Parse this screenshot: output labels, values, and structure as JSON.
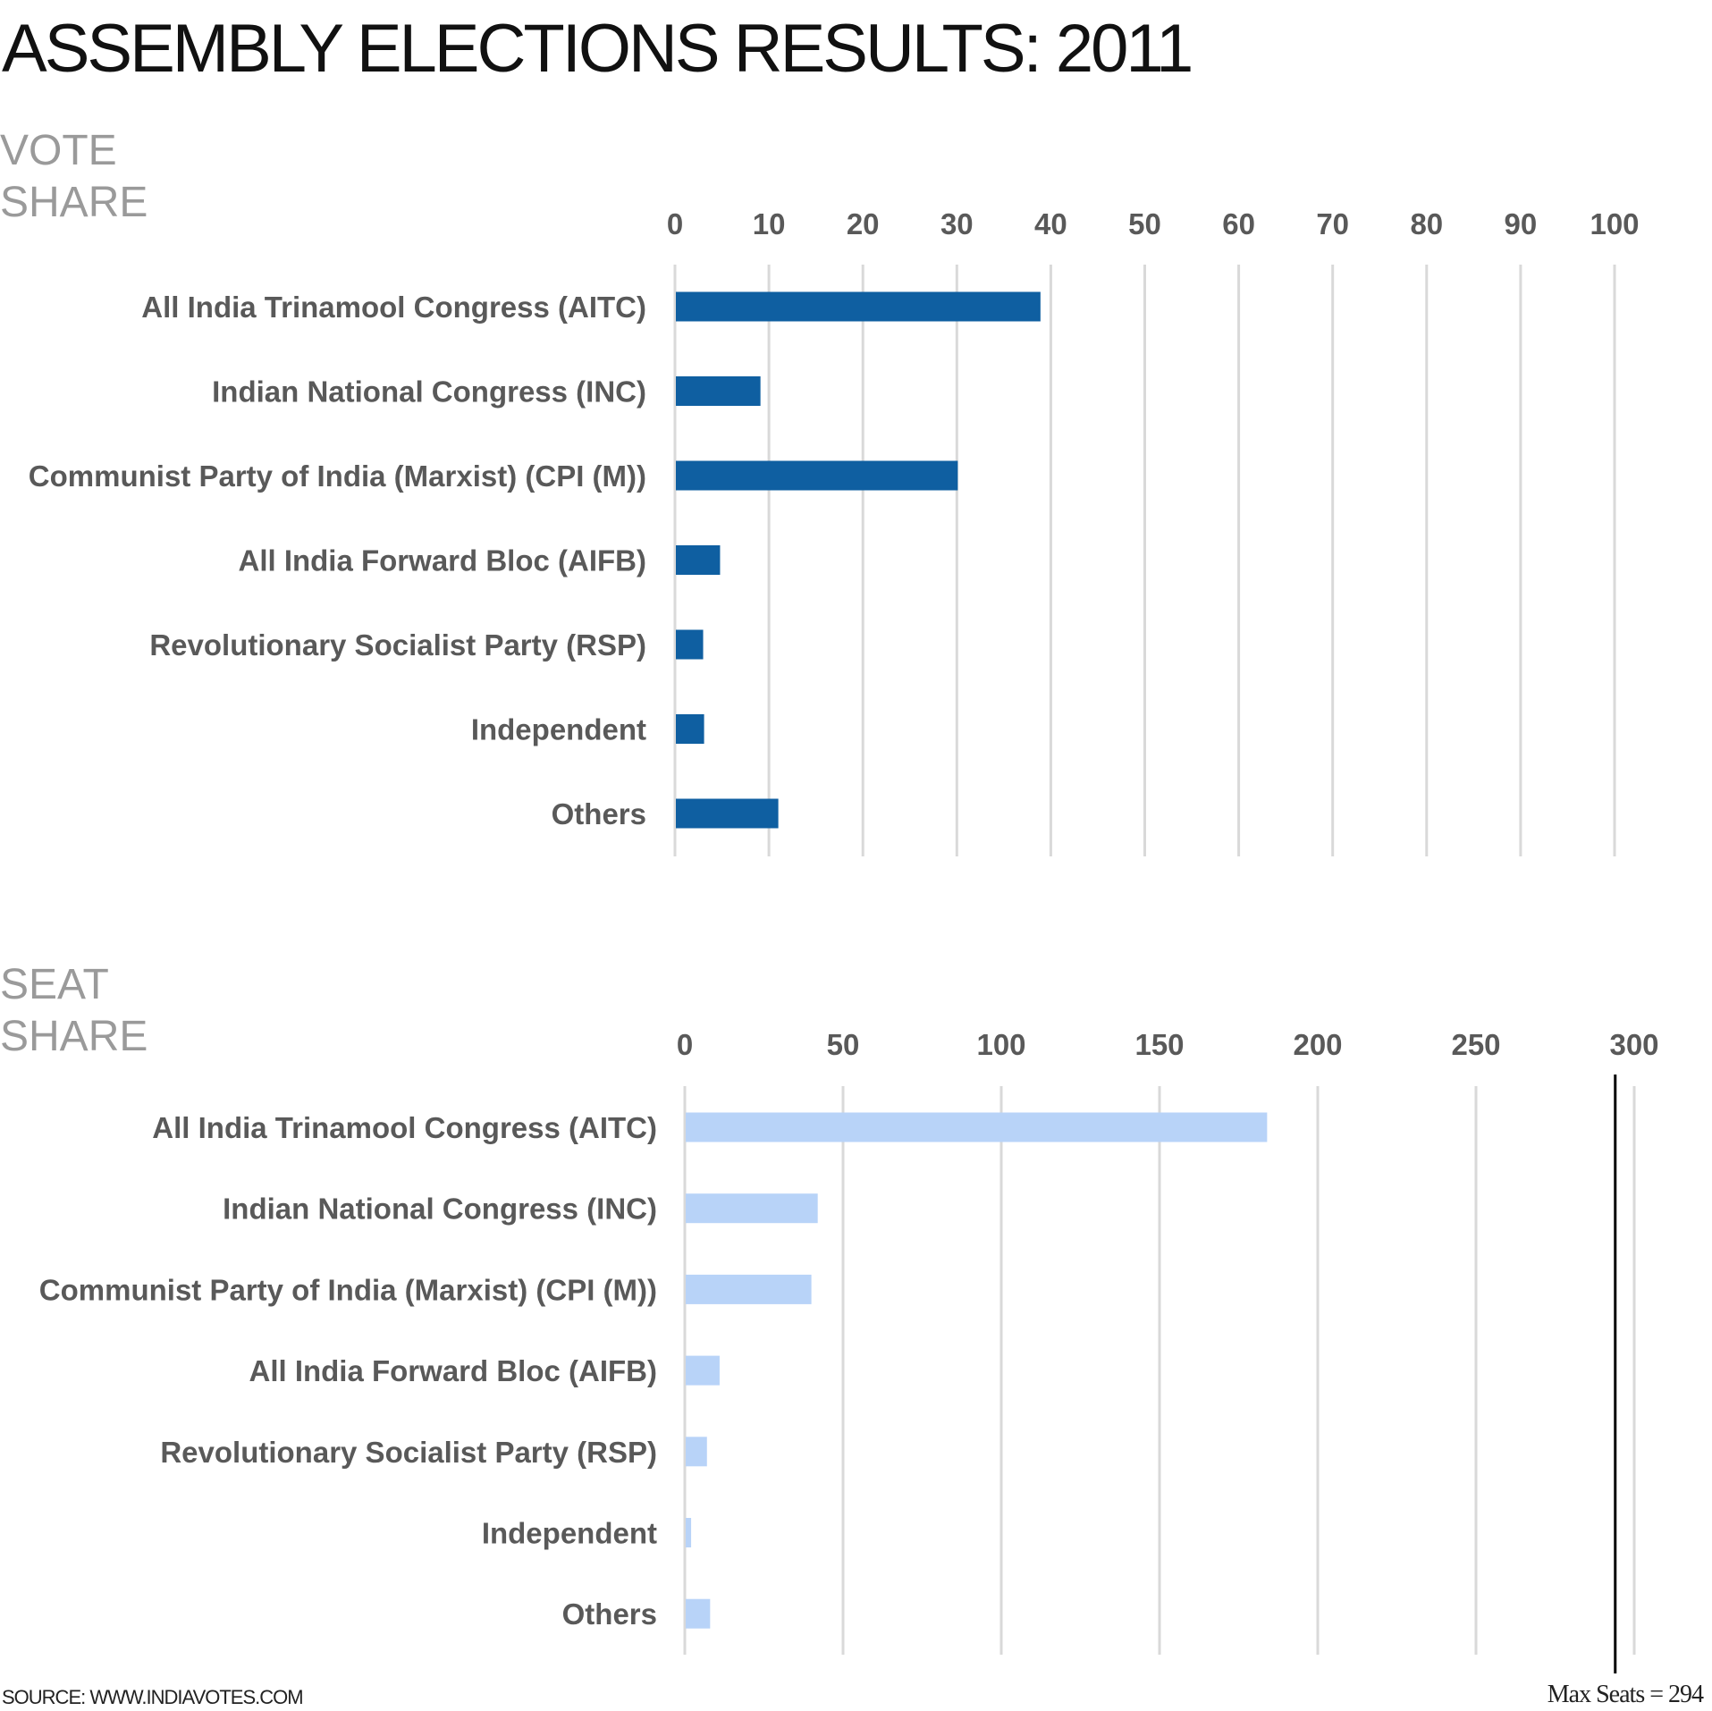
{
  "title": "ASSEMBLY ELECTIONS RESULTS: 2011",
  "vote_section": {
    "heading_line1": "VOTE",
    "heading_line2": "SHARE"
  },
  "seat_section": {
    "heading_line1": "SEAT",
    "heading_line2": "SHARE"
  },
  "source": "SOURCE: WWW.INDIAVOTES.COM",
  "max_seats_label": "Max Seats = 294",
  "colors": {
    "vote_bar": "#0f5fa1",
    "seat_bar": "#b8d3f8",
    "grid": "#d9d9d9",
    "max_line": "#000000"
  },
  "chart_data": [
    {
      "type": "bar",
      "orientation": "horizontal",
      "title": "VOTE SHARE",
      "categories": [
        "All India Trinamool Congress (AITC)",
        "Indian National Congress (INC)",
        "Communist Party of India (Marxist) (CPI (M))",
        "All India Forward Bloc (AIFB)",
        "Revolutionary Socialist Party (RSP)",
        "Independent",
        "Others"
      ],
      "values": [
        38.9,
        9.1,
        30.1,
        4.8,
        3.0,
        3.1,
        11.0
      ],
      "xlim": [
        0,
        100
      ],
      "xticks": [
        0,
        10,
        20,
        30,
        40,
        50,
        60,
        70,
        80,
        90,
        100
      ],
      "axis_position": "top",
      "grid": true
    },
    {
      "type": "bar",
      "orientation": "horizontal",
      "title": "SEAT SHARE",
      "categories": [
        "All India Trinamool Congress (AITC)",
        "Indian National Congress (INC)",
        "Communist Party of India (Marxist) (CPI (M))",
        "All India Forward Bloc (AIFB)",
        "Revolutionary Socialist Party (RSP)",
        "Independent",
        "Others"
      ],
      "values": [
        184,
        42,
        40,
        11,
        7,
        2,
        8
      ],
      "xlim": [
        0,
        300
      ],
      "xticks": [
        0,
        50,
        100,
        150,
        200,
        250,
        300
      ],
      "axis_position": "top",
      "grid": true,
      "reference_line": {
        "value": 294,
        "label": "Max Seats = 294"
      }
    }
  ]
}
